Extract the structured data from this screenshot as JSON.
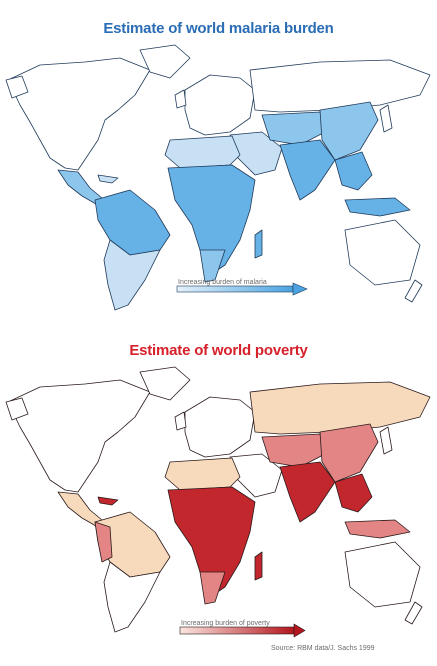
{
  "maps": {
    "malaria": {
      "title": "Estimate of world malaria burden",
      "title_color": "#2a6db5",
      "legend_label": "Increasing burden of malaria",
      "colors": {
        "light": "#c7e0f4",
        "mid": "#8dc6ec",
        "dark": "#66b2e6",
        "border": "#1f3a5a"
      }
    },
    "poverty": {
      "title": "Estimate of world poverty",
      "title_color": "#d6202a",
      "legend_label": "Increasing burden of poverty",
      "colors": {
        "light": "#f7d9bc",
        "mid": "#e38585",
        "dark": "#c2272e",
        "border": "#2a1a1a"
      }
    }
  },
  "source": "Source: RBM data/J. Sachs 1999"
}
